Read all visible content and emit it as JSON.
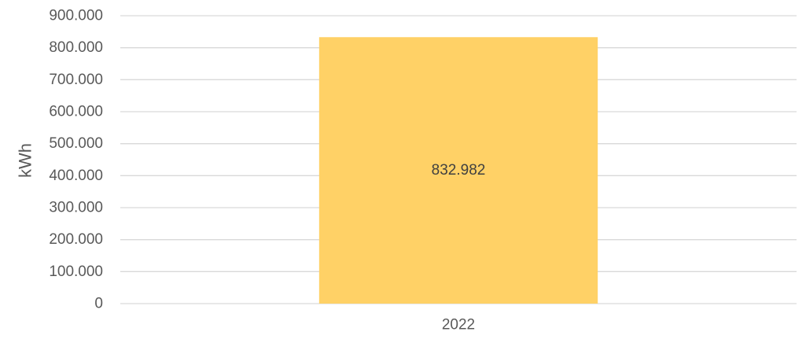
{
  "chart_data": {
    "type": "bar",
    "categories": [
      "2022"
    ],
    "values": [
      832982
    ],
    "value_labels": [
      "832.982"
    ],
    "title": "",
    "xlabel": "",
    "ylabel": "kWh",
    "ylim": [
      0,
      900000
    ],
    "yticks": [
      0,
      100000,
      200000,
      300000,
      400000,
      500000,
      600000,
      700000,
      800000,
      900000
    ],
    "ytick_labels": [
      "0",
      "100.000",
      "200.000",
      "300.000",
      "400.000",
      "500.000",
      "600.000",
      "700.000",
      "800.000",
      "900.000"
    ],
    "grid": true,
    "legend": "none",
    "colors": {
      "bar": "#FFD166",
      "grid": "#D9D9D9",
      "tick_text": "#595959",
      "label_text": "#404040"
    }
  }
}
